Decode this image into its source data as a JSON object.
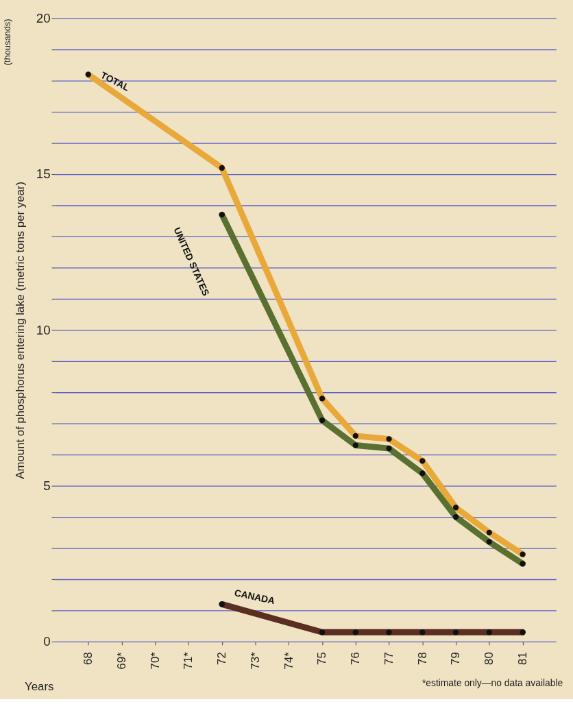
{
  "chart_data": {
    "type": "line",
    "xlabel": "Years",
    "ylabel": "Amount of phosphorus entering lake (metric tons per year)",
    "annotations": [
      "(thousands)",
      "*estimate only—no data available"
    ],
    "categories": [
      "68",
      "69*",
      "70*",
      "71*",
      "72",
      "73*",
      "74*",
      "75",
      "76",
      "77",
      "78",
      "79",
      "80",
      "81"
    ],
    "series": [
      {
        "name": "TOTAL",
        "color": "#e8a83a",
        "values": [
          18.2,
          null,
          null,
          null,
          15.2,
          null,
          null,
          7.8,
          6.6,
          6.5,
          5.8,
          4.3,
          3.5,
          2.8
        ]
      },
      {
        "name": "UNITED STATES",
        "color": "#5a7030",
        "values": [
          null,
          null,
          null,
          null,
          13.7,
          null,
          null,
          7.1,
          6.3,
          6.2,
          5.4,
          4.0,
          3.2,
          2.5
        ]
      },
      {
        "name": "CANADA",
        "color": "#5a2e20",
        "values": [
          null,
          null,
          null,
          null,
          1.2,
          null,
          null,
          0.3,
          0.3,
          0.3,
          0.3,
          0.3,
          0.3,
          0.3
        ]
      }
    ],
    "ylim": [
      0,
      20
    ],
    "yticks": [
      0,
      {
        "value": 1,
        "label": null
      },
      {
        "value": 2,
        "label": null
      },
      {
        "value": 3,
        "label": null
      },
      {
        "value": 4,
        "label": null
      },
      5,
      {
        "value": 6,
        "label": null
      },
      {
        "value": 7,
        "label": null
      },
      {
        "value": 8,
        "label": null
      },
      {
        "value": 9,
        "label": null
      },
      10,
      {
        "value": 11,
        "label": null
      },
      {
        "value": 12,
        "label": null
      },
      {
        "value": 13,
        "label": null
      },
      {
        "value": 14,
        "label": null
      },
      15,
      {
        "value": 16,
        "label": null
      },
      {
        "value": 17,
        "label": null
      },
      {
        "value": 18,
        "label": null
      },
      {
        "value": 19,
        "label": null
      },
      20
    ],
    "grid": "y",
    "legend": false,
    "marker": "circle",
    "line_style": "solid"
  }
}
